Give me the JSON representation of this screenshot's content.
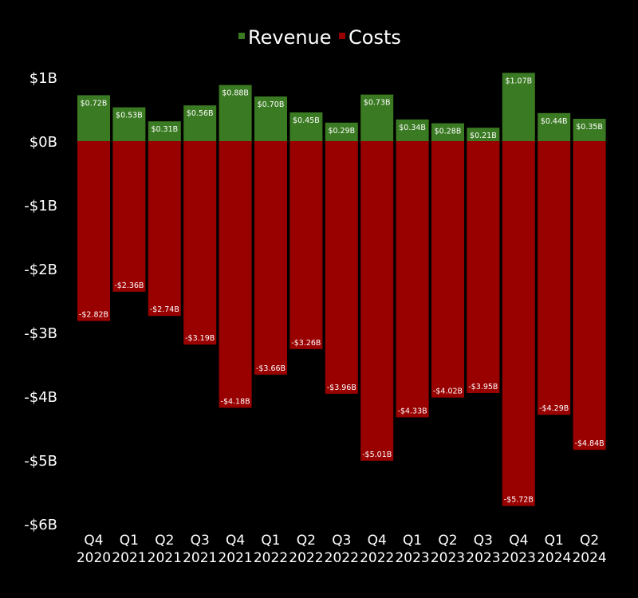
{
  "colors": {
    "revenue": "#3a7a22",
    "costs": "#990000",
    "background": "#000000",
    "text": "#ffffff"
  },
  "chart_data": {
    "type": "bar",
    "title": "",
    "xlabel": "",
    "ylabel": "",
    "legend_position": "top-center",
    "categories": [
      [
        "Q4",
        "2020"
      ],
      [
        "Q1",
        "2021"
      ],
      [
        "Q2",
        "2021"
      ],
      [
        "Q3",
        "2021"
      ],
      [
        "Q4",
        "2021"
      ],
      [
        "Q1",
        "2022"
      ],
      [
        "Q2",
        "2022"
      ],
      [
        "Q3",
        "2022"
      ],
      [
        "Q4",
        "2022"
      ],
      [
        "Q1",
        "2023"
      ],
      [
        "Q2",
        "2023"
      ],
      [
        "Q3",
        "2023"
      ],
      [
        "Q4",
        "2023"
      ],
      [
        "Q1",
        "2024"
      ],
      [
        "Q2",
        "2024"
      ]
    ],
    "series": [
      {
        "name": "Revenue",
        "values": [
          0.72,
          0.53,
          0.31,
          0.56,
          0.88,
          0.7,
          0.45,
          0.29,
          0.73,
          0.34,
          0.28,
          0.21,
          1.07,
          0.44,
          0.35
        ],
        "labels": [
          "$0.72B",
          "$0.53B",
          "$0.31B",
          "$0.56B",
          "$0.88B",
          "$0.70B",
          "$0.45B",
          "$0.29B",
          "$0.73B",
          "$0.34B",
          "$0.28B",
          "$0.21B",
          "$1.07B",
          "$0.44B",
          "$0.35B"
        ]
      },
      {
        "name": "Costs",
        "values": [
          -2.82,
          -2.36,
          -2.74,
          -3.19,
          -4.18,
          -3.66,
          -3.26,
          -3.96,
          -5.01,
          -4.33,
          -4.02,
          -3.95,
          -5.72,
          -4.29,
          -4.84
        ],
        "labels": [
          "-$2.82B",
          "-$2.36B",
          "-$2.74B",
          "-$3.19B",
          "-$4.18B",
          "-$3.66B",
          "-$3.26B",
          "-$3.96B",
          "-$5.01B",
          "-$4.33B",
          "-$4.02B",
          "-$3.95B",
          "-$5.72B",
          "-$4.29B",
          "-$4.84B"
        ]
      }
    ],
    "ylim": [
      -6,
      1
    ],
    "yticks": [
      1,
      0,
      -1,
      -2,
      -3,
      -4,
      -5,
      -6
    ],
    "ytick_labels": [
      "$1B",
      "$0B",
      "-$1B",
      "-$2B",
      "-$3B",
      "-$4B",
      "-$5B",
      "-$6B"
    ],
    "grid": false
  }
}
